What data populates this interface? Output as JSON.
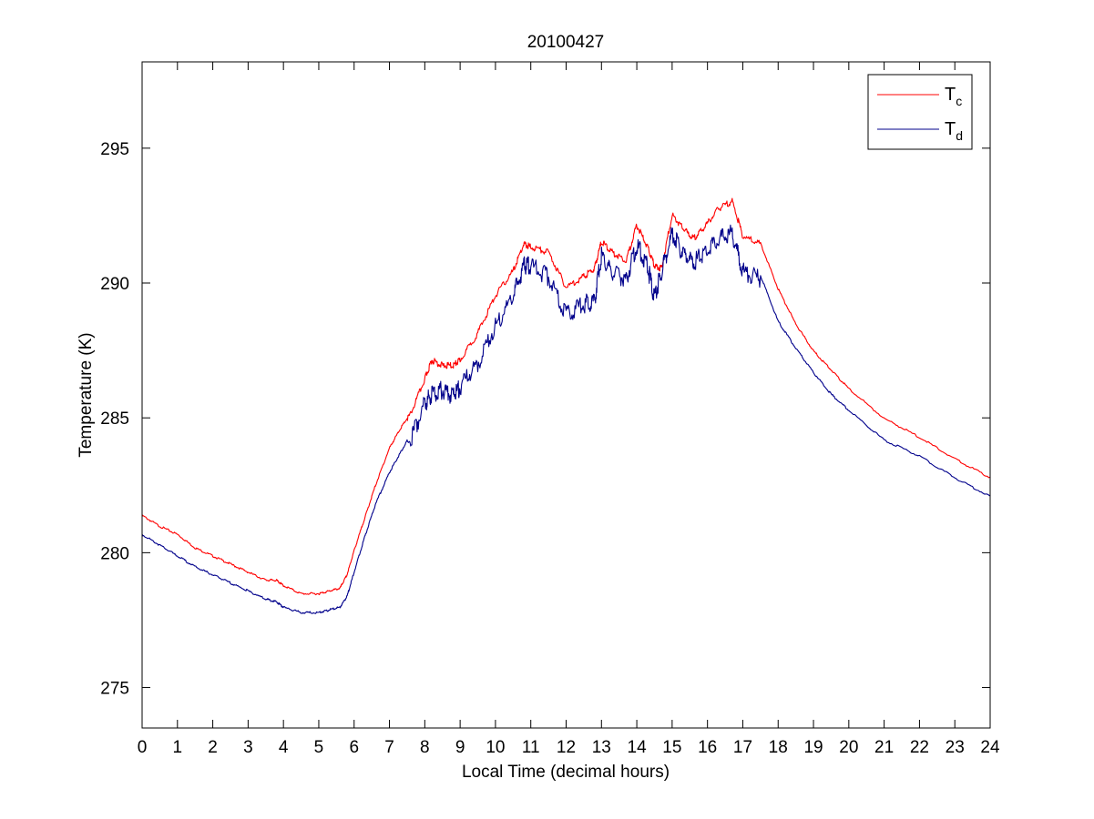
{
  "chart_data": {
    "type": "line",
    "title": "20100427",
    "xlabel": "Local Time (decimal hours)",
    "ylabel": "Temperature (K)",
    "xlim": [
      0,
      24
    ],
    "ylim": [
      273.5,
      298.2
    ],
    "xticks": [
      0,
      1,
      2,
      3,
      4,
      5,
      6,
      7,
      8,
      9,
      10,
      11,
      12,
      13,
      14,
      15,
      16,
      17,
      18,
      19,
      20,
      21,
      22,
      23,
      24
    ],
    "yticks": [
      275,
      280,
      285,
      290,
      295
    ],
    "grid": false,
    "legend_position": "top-right",
    "series": [
      {
        "name": "Tc",
        "name_main": "T",
        "name_sub": "c",
        "color": "#ff0000",
        "x": [
          0,
          0.5,
          1,
          1.5,
          2,
          2.5,
          3,
          3.5,
          3.8,
          4,
          4.5,
          5,
          5.3,
          5.6,
          5.8,
          6,
          6.3,
          6.6,
          7,
          7.3,
          7.6,
          8,
          8.2,
          8.5,
          8.8,
          9,
          9.5,
          10,
          10.5,
          10.8,
          11,
          11.5,
          12,
          12.5,
          12.8,
          13,
          13.3,
          13.7,
          14,
          14.3,
          14.5,
          14.7,
          15,
          15.3,
          15.6,
          15.9,
          16.3,
          16.7,
          17,
          17.5,
          18,
          18.5,
          19,
          19.5,
          20,
          21,
          22,
          23,
          24
        ],
        "y": [
          281.4,
          281.0,
          280.7,
          280.2,
          279.9,
          279.6,
          279.3,
          279.0,
          279.0,
          278.8,
          278.5,
          278.5,
          278.6,
          278.7,
          279.2,
          280.1,
          281.3,
          282.5,
          283.9,
          284.6,
          285.2,
          286.5,
          287.2,
          287.0,
          287.0,
          287.2,
          288.2,
          289.6,
          290.5,
          291.5,
          291.4,
          291.2,
          289.9,
          290.3,
          290.6,
          291.6,
          291.2,
          290.9,
          292.2,
          291.4,
          290.7,
          290.6,
          292.6,
          292.1,
          291.7,
          292.1,
          292.8,
          293.1,
          291.8,
          291.5,
          289.8,
          288.5,
          287.5,
          286.8,
          286.1,
          285.0,
          284.3,
          283.5,
          282.8
        ]
      },
      {
        "name": "Td",
        "name_main": "T",
        "name_sub": "d",
        "color": "#00008b",
        "x": [
          0,
          0.5,
          1,
          1.5,
          2,
          2.5,
          3,
          3.5,
          3.8,
          4,
          4.5,
          5,
          5.3,
          5.6,
          5.8,
          6,
          6.3,
          6.6,
          7,
          7.3,
          7.6,
          8,
          8.2,
          8.5,
          8.8,
          9,
          9.5,
          10,
          10.5,
          10.8,
          11,
          11.5,
          12,
          12.5,
          12.8,
          13,
          13.3,
          13.7,
          14,
          14.3,
          14.5,
          14.7,
          15,
          15.3,
          15.6,
          15.9,
          16.3,
          16.7,
          17,
          17.5,
          18,
          18.5,
          19,
          19.5,
          20,
          21,
          22,
          23,
          24
        ],
        "y": [
          280.7,
          280.3,
          279.9,
          279.5,
          279.2,
          278.9,
          278.6,
          278.3,
          278.2,
          278.0,
          277.8,
          277.8,
          277.9,
          278.0,
          278.4,
          279.3,
          280.6,
          281.8,
          283.0,
          283.7,
          284.4,
          285.7,
          286.1,
          286.2,
          286.0,
          286.3,
          287.2,
          288.6,
          289.7,
          290.8,
          290.8,
          290.4,
          289.0,
          289.4,
          289.5,
          291.2,
          290.6,
          290.3,
          291.6,
          290.8,
          289.6,
          290.6,
          292.0,
          291.3,
          290.9,
          291.3,
          291.8,
          292.0,
          290.6,
          290.3,
          288.6,
          287.6,
          286.7,
          285.9,
          285.3,
          284.2,
          283.6,
          282.8,
          282.1
        ]
      }
    ]
  }
}
